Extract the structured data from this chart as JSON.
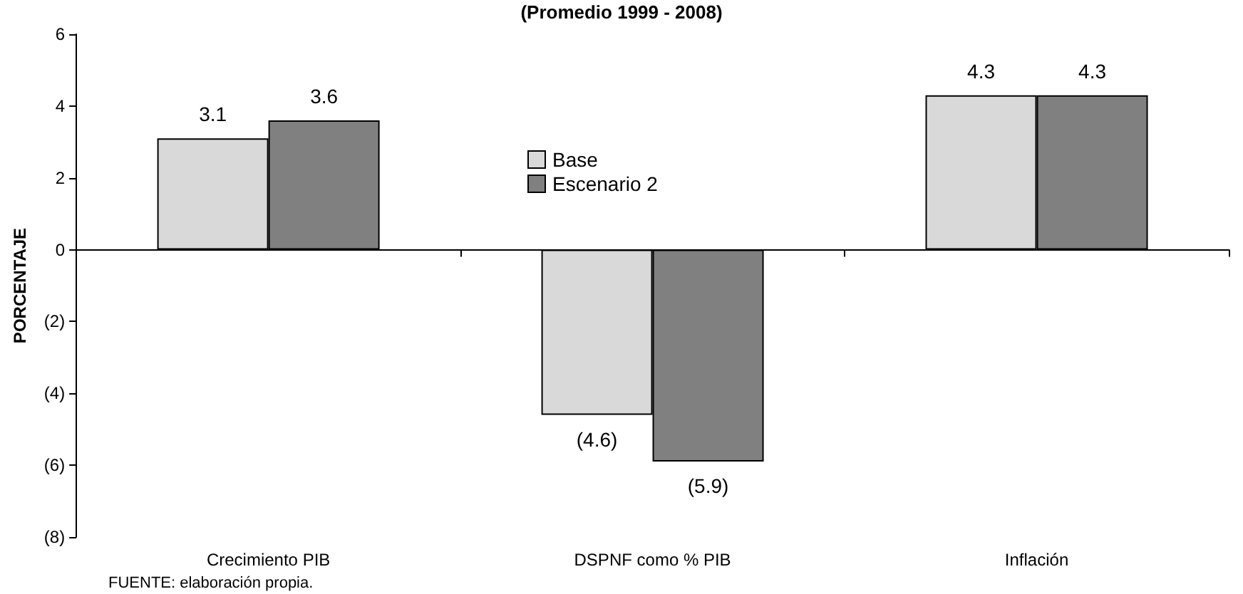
{
  "chart_data": {
    "type": "bar",
    "subtitle": "(Promedio 1999 - 2008)",
    "ylabel": "PORCENTAJE",
    "categories": [
      "Crecimiento PIB",
      "DSPNF como % PIB",
      "Inflación"
    ],
    "series": [
      {
        "name": "Base",
        "color": "#d9d9d9",
        "values": [
          3.1,
          -4.6,
          4.3
        ],
        "value_labels": [
          "3.1",
          "(4.6)",
          "4.3"
        ]
      },
      {
        "name": "Escenario 2",
        "color": "#808080",
        "values": [
          3.6,
          -5.9,
          4.3
        ],
        "value_labels": [
          "3.6",
          "(5.9)",
          "4.3"
        ]
      }
    ],
    "ylim": [
      -8,
      6
    ],
    "yticks": [
      {
        "value": -8,
        "label": "(8)"
      },
      {
        "value": -6,
        "label": "(6)"
      },
      {
        "value": -4,
        "label": "(4)"
      },
      {
        "value": -2,
        "label": "(2)"
      },
      0,
      2,
      4,
      6
    ],
    "legend": "top",
    "annotations": [
      "FUENTE: elaboración propia."
    ]
  }
}
